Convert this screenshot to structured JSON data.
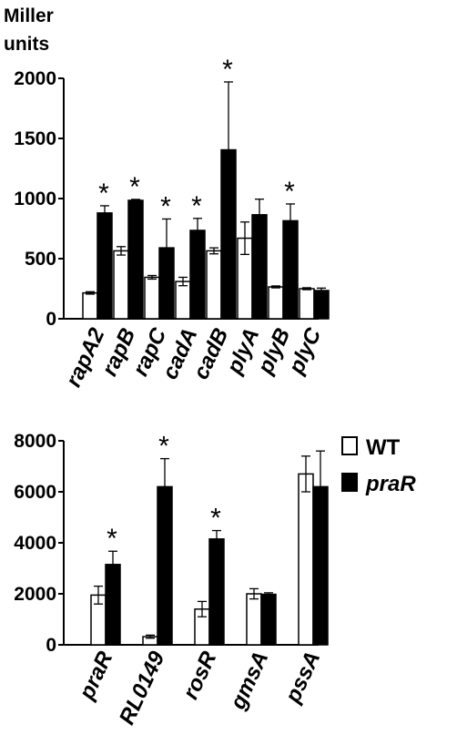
{
  "figure": {
    "ylabel_line1": "Miller",
    "ylabel_line2": "units"
  },
  "legend": [
    {
      "label": "WT",
      "fill": "#ffffff",
      "italic": false
    },
    {
      "label": "praR",
      "fill": "#000000",
      "italic": true
    }
  ],
  "significance_mark": "*",
  "chart_data": [
    {
      "type": "bar",
      "ylabel": "Miller units",
      "ylim": [
        0,
        2000
      ],
      "yticks": [
        "0",
        "500",
        "1000",
        "1500",
        "2000"
      ],
      "categories": [
        "rapA2",
        "rapB",
        "rapC",
        "cadA",
        "cadB",
        "plyA",
        "plyB",
        "plyC"
      ],
      "series": [
        {
          "name": "WT",
          "color": "#ffffff",
          "values": [
            215,
            565,
            345,
            310,
            565,
            670,
            265,
            250
          ],
          "errors": [
            10,
            35,
            15,
            35,
            25,
            135,
            8,
            8
          ]
        },
        {
          "name": "praR",
          "color": "#000000",
          "values": [
            880,
            985,
            590,
            735,
            1405,
            865,
            815,
            235
          ],
          "errors": [
            60,
            8,
            240,
            100,
            565,
            130,
            140,
            20
          ]
        }
      ],
      "significant": [
        true,
        true,
        true,
        true,
        true,
        false,
        true,
        false
      ]
    },
    {
      "type": "bar",
      "ylim": [
        0,
        8000
      ],
      "yticks": [
        "0",
        "2000",
        "4000",
        "6000",
        "8000"
      ],
      "categories": [
        "praR",
        "RL0149",
        "rosR",
        "gmsA",
        "pssA"
      ],
      "series": [
        {
          "name": "WT",
          "color": "#ffffff",
          "values": [
            1950,
            320,
            1400,
            2000,
            6700
          ],
          "errors": [
            350,
            60,
            300,
            200,
            700
          ]
        },
        {
          "name": "praR",
          "color": "#000000",
          "values": [
            3150,
            6200,
            4150,
            1980,
            6200
          ],
          "errors": [
            520,
            1100,
            330,
            60,
            1400
          ]
        }
      ],
      "significant": [
        true,
        true,
        true,
        false,
        false
      ]
    }
  ]
}
